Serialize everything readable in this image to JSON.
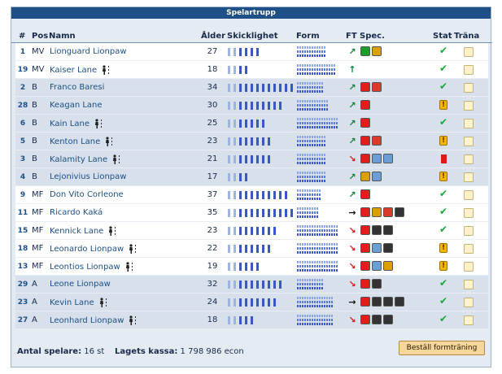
{
  "title": "Spelartrupp",
  "headers": {
    "num": "#",
    "pos": "Pos",
    "name": "Namn",
    "age": "Ålder",
    "skill": "Skicklighet",
    "form": "Form",
    "ft": "FT",
    "spec": "Spec.",
    "stat": "Stat",
    "train": "Träna"
  },
  "players": [
    {
      "num": "1",
      "pos": "MV",
      "name": "Lionguard Lionpaw",
      "age": "27",
      "skill": 6,
      "form": 0.6,
      "ft": "up-right",
      "ft_color": "#15803d",
      "spec": [
        "#1a9e2a",
        "#d9a000"
      ],
      "stat": "check",
      "figure": false
    },
    {
      "num": "19",
      "pos": "MV",
      "name": "Kaiser Lane",
      "age": "18",
      "skill": 4,
      "form": 0.85,
      "ft": "up",
      "ft_color": "#15803d",
      "spec": [],
      "stat": "check",
      "figure": true
    },
    {
      "num": "2",
      "pos": "B",
      "name": "Franco Baresi",
      "age": "34",
      "skill": 12,
      "form": 0.55,
      "ft": "up-right",
      "ft_color": "#15803d",
      "spec": [
        "#e61b1b",
        "#d93a2a"
      ],
      "stat": "check",
      "figure": false
    },
    {
      "num": "28",
      "pos": "B",
      "name": "Keagan Lane",
      "age": "30",
      "skill": 10,
      "form": 0.7,
      "ft": "up-right",
      "ft_color": "#15803d",
      "spec": [
        "#e61b1b"
      ],
      "stat": "warn",
      "figure": false
    },
    {
      "num": "6",
      "pos": "B",
      "name": "Kain Lane",
      "age": "25",
      "skill": 7,
      "form": 0.9,
      "ft": "up-right",
      "ft_color": "#15803d",
      "spec": [
        "#e61b1b"
      ],
      "stat": "check",
      "figure": true
    },
    {
      "num": "5",
      "pos": "B",
      "name": "Kenton Lane",
      "age": "23",
      "skill": 8,
      "form": 0.65,
      "ft": "up-right",
      "ft_color": "#15803d",
      "spec": [
        "#e61b1b",
        "#d93a2a"
      ],
      "stat": "warn",
      "figure": true
    },
    {
      "num": "3",
      "pos": "B",
      "name": "Kalamity Lane",
      "age": "21",
      "skill": 8,
      "form": 0.65,
      "ft": "down-right",
      "ft_color": "#d91c1c",
      "spec": [
        "#e61b1b",
        "#6a9fd6",
        "#6a9fd6"
      ],
      "stat": "red",
      "figure": true
    },
    {
      "num": "4",
      "pos": "B",
      "name": "Lejonivius Lionpaw",
      "age": "17",
      "skill": 4,
      "form": 0.6,
      "ft": "up-right",
      "ft_color": "#15803d",
      "spec": [
        "#d9a000",
        "#6a9fd6"
      ],
      "stat": "warn",
      "figure": false
    },
    {
      "num": "9",
      "pos": "MF",
      "name": "Don Vito Corleone",
      "age": "37",
      "skill": 11,
      "form": 0.5,
      "ft": "up-right",
      "ft_color": "#15803d",
      "spec": [
        "#e61b1b"
      ],
      "stat": "check",
      "figure": false
    },
    {
      "num": "11",
      "pos": "MF",
      "name": "Ricardo Kaká",
      "age": "35",
      "skill": 12,
      "form": 0.45,
      "ft": "right",
      "ft_color": "#111111",
      "spec": [
        "#e61b1b",
        "#d9a000",
        "#d93a2a",
        "#333333"
      ],
      "stat": "check",
      "figure": false
    },
    {
      "num": "15",
      "pos": "MF",
      "name": "Kennick Lane",
      "age": "23",
      "skill": 9,
      "form": 0.9,
      "ft": "down-right",
      "ft_color": "#d91c1c",
      "spec": [
        "#e61b1b",
        "#333333",
        "#333333"
      ],
      "stat": "check",
      "figure": true
    },
    {
      "num": "18",
      "pos": "MF",
      "name": "Leonardo Lionpaw",
      "age": "22",
      "skill": 8,
      "form": 0.9,
      "ft": "down-right",
      "ft_color": "#d91c1c",
      "spec": [
        "#e61b1b",
        "#6a9fd6",
        "#333333"
      ],
      "stat": "warn",
      "figure": true
    },
    {
      "num": "13",
      "pos": "MF",
      "name": "Leontios Lionpaw",
      "age": "19",
      "skill": 6,
      "form": 0.9,
      "ft": "down-right",
      "ft_color": "#d91c1c",
      "spec": [
        "#e61b1b",
        "#6a9fd6",
        "#d9a000"
      ],
      "stat": "warn",
      "figure": true
    },
    {
      "num": "29",
      "pos": "A",
      "name": "Leone Lionpaw",
      "age": "32",
      "skill": 10,
      "form": 0.55,
      "ft": "down-right",
      "ft_color": "#d91c1c",
      "spec": [
        "#e61b1b",
        "#333333"
      ],
      "stat": "check",
      "figure": false
    },
    {
      "num": "23",
      "pos": "A",
      "name": "Kevin Lane",
      "age": "24",
      "skill": 9,
      "form": 0.8,
      "ft": "right",
      "ft_color": "#111111",
      "spec": [
        "#e61b1b",
        "#333333",
        "#333333",
        "#333333"
      ],
      "stat": "check",
      "figure": true
    },
    {
      "num": "27",
      "pos": "A",
      "name": "Leonhard Lionpaw",
      "age": "18",
      "skill": 5,
      "form": 0.8,
      "ft": "down-right",
      "ft_color": "#d91c1c",
      "spec": [
        "#e61b1b",
        "#333333",
        "#333333"
      ],
      "stat": "check",
      "figure": true
    }
  ],
  "footer": {
    "count_label": "Antal spelare:",
    "count_value": "16 st",
    "cash_label": "Lagets kassa:",
    "cash_value": "1 798 986 econ"
  },
  "order_button": "Beställ formträning"
}
